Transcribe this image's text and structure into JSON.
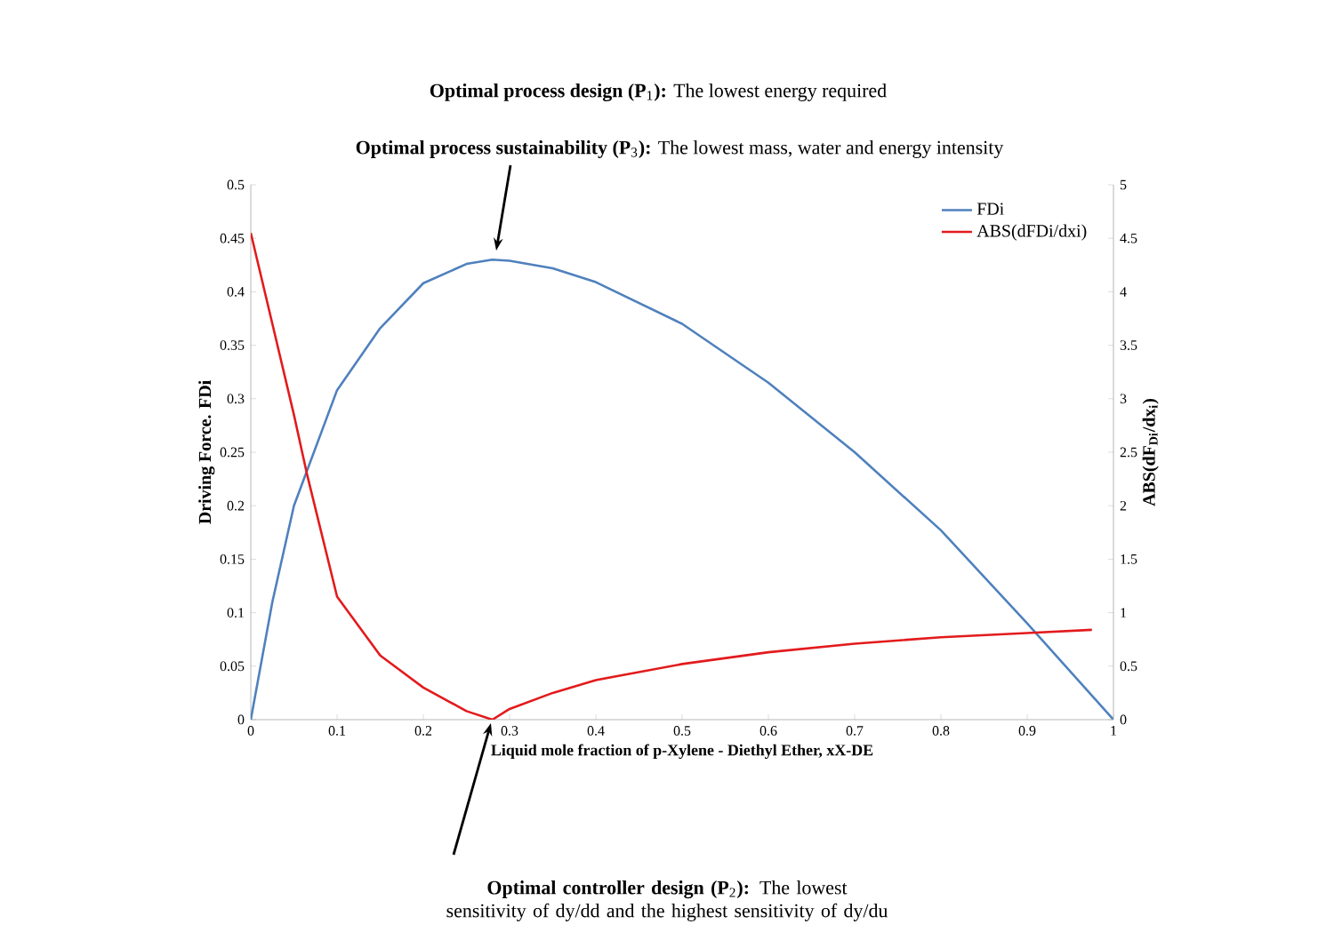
{
  "chart_data": {
    "type": "line",
    "annotations": [
      "**Optimal process design (P**$_{1}$**):** The lowest energy required",
      "**Optimal process sustainability (P**$_{3}$**):** The lowest mass, water and energy intensity",
      "**Optimal controller design (P**$_{2}$**):** The lowest sensitivity of dy/dd and the highest sensitivity of  dy/du"
    ],
    "xlabel": "Liquid mole fraction of p-Xylene - Diethyl Ether, xX-DE",
    "ylabel": "Driving Force. FDi",
    "y2label": "ABS(dF$_{Di}$/dx$_{i}$)",
    "xlim": [
      0,
      1
    ],
    "xticks": [
      0,
      0.1,
      0.2,
      0.3,
      0.4,
      0.5,
      0.6,
      0.7,
      0.8,
      0.9,
      1
    ],
    "ylim": [
      0,
      0.5
    ],
    "yticks": [
      0,
      0.05,
      0.1,
      0.15,
      0.2,
      0.25,
      0.3,
      0.35,
      0.4,
      0.45,
      0.5
    ],
    "y2lim": [
      0,
      5
    ],
    "y2ticks": [
      0,
      0.5,
      1,
      1.5,
      2,
      2.5,
      3,
      3.5,
      4,
      4.5,
      5
    ],
    "legend": "top right",
    "series": [
      {
        "name": "FDi",
        "color": "#4f81bd",
        "x": [
          0,
          0.025,
          0.05,
          0.1,
          0.15,
          0.2,
          0.25,
          0.28,
          0.3,
          0.35,
          0.4,
          0.5,
          0.6,
          0.7,
          0.8,
          0.9,
          1
        ],
        "values": [
          0,
          0.11,
          0.2,
          0.308,
          0.366,
          0.408,
          0.426,
          0.43,
          0.429,
          0.422,
          0.409,
          0.37,
          0.315,
          0.25,
          0.177,
          0.09,
          0
        ]
      },
      {
        "name": "ABS(dFDi/dxi)",
        "color": "#e31a1c",
        "axis": "y2",
        "x": [
          0,
          0.025,
          0.05,
          0.065,
          0.1,
          0.15,
          0.2,
          0.25,
          0.28,
          0.3,
          0.35,
          0.4,
          0.5,
          0.6,
          0.7,
          0.8,
          0.9,
          0.975
        ],
        "values": [
          4.55,
          3.7,
          2.85,
          2.3,
          1.15,
          0.6,
          0.3,
          0.08,
          0,
          0.1,
          0.25,
          0.37,
          0.52,
          0.63,
          0.71,
          0.77,
          0.81,
          0.84
        ]
      }
    ]
  }
}
